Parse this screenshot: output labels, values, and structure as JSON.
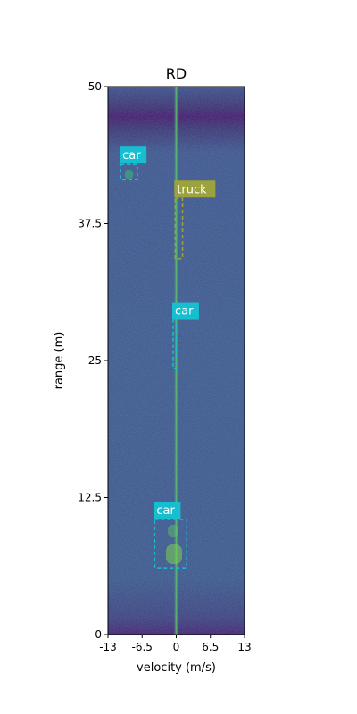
{
  "chart_data": {
    "type": "heatmap",
    "title": "RD",
    "xlabel": "velocity (m/s)",
    "ylabel": "range (m)",
    "xlim": [
      -13,
      13
    ],
    "ylim": [
      0,
      50
    ],
    "xticks": [
      -13,
      -6.5,
      0,
      6.5,
      13
    ],
    "xtick_labels": [
      "-13",
      "-6.5",
      "0",
      "6.5",
      "13"
    ],
    "yticks": [
      0,
      12.5,
      25,
      37.5,
      50
    ],
    "ytick_labels": [
      "0",
      "12.5",
      "25",
      "37.5",
      "50"
    ],
    "colormap": "viridis",
    "grid": false,
    "detections": [
      {
        "label": "car",
        "color": "#17becf",
        "x": [
          -10.6,
          -7.4
        ],
        "y": [
          41.5,
          42.9
        ]
      },
      {
        "label": "truck",
        "color": "#9ca23c",
        "x": [
          -0.2,
          1.2
        ],
        "y": [
          34.3,
          39.8
        ]
      },
      {
        "label": "car",
        "color": "#17becf",
        "x": [
          -0.6,
          0.0
        ],
        "y": [
          24.3,
          28.7
        ]
      },
      {
        "label": "car",
        "color": "#17becf",
        "x": [
          -4.1,
          2.0
        ],
        "y": [
          6.1,
          10.5
        ]
      }
    ]
  }
}
